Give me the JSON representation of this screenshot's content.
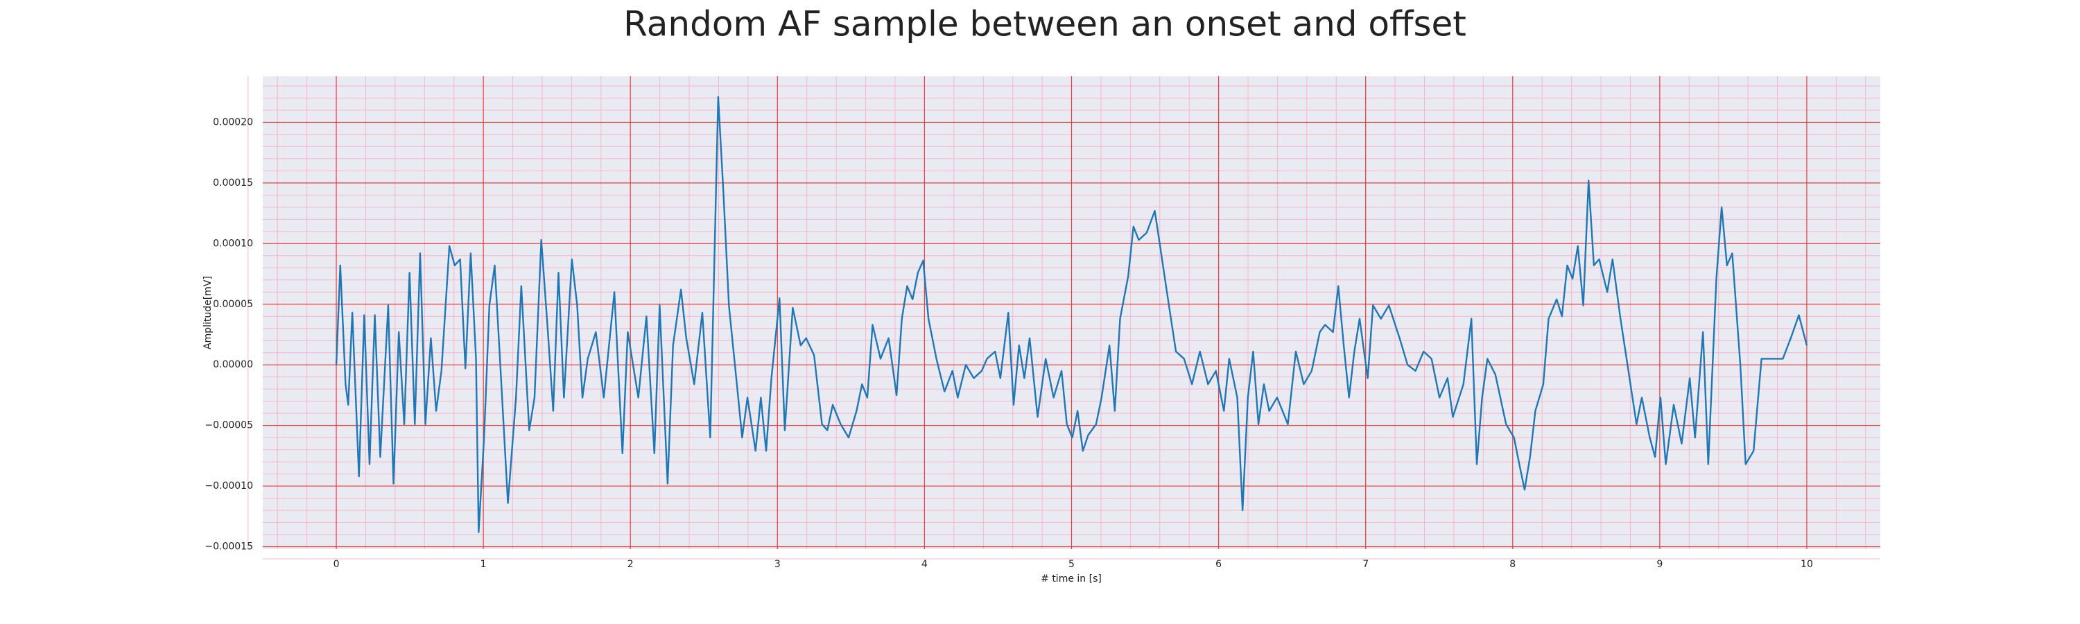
{
  "chart_data": {
    "type": "line",
    "title": "Random AF sample between an onset and offset",
    "xlabel": "# time in [s]",
    "ylabel": "Amplitude[mV]",
    "x": [
      0,
      0.027,
      0.063,
      0.081,
      0.109,
      0.154,
      0.19,
      0.226,
      0.262,
      0.299,
      0.353,
      0.389,
      0.425,
      0.462,
      0.498,
      0.534,
      0.57,
      0.606,
      0.643,
      0.679,
      0.715,
      0.769,
      0.805,
      0.842,
      0.878,
      0.914,
      0.95,
      0.968,
      1.005,
      1.041,
      1.077,
      1.113,
      1.167,
      1.222,
      1.258,
      1.312,
      1.348,
      1.394,
      1.439,
      1.475,
      1.511,
      1.548,
      1.602,
      1.638,
      1.674,
      1.71,
      1.765,
      1.819,
      1.891,
      1.946,
      1.982,
      2.054,
      2.109,
      2.163,
      2.199,
      2.253,
      2.29,
      2.344,
      2.38,
      2.434,
      2.489,
      2.543,
      2.597,
      2.633,
      2.67,
      2.724,
      2.76,
      2.796,
      2.851,
      2.887,
      2.923,
      2.959,
      3.014,
      3.05,
      3.104,
      3.158,
      3.195,
      3.249,
      3.303,
      3.339,
      3.376,
      3.43,
      3.484,
      3.538,
      3.575,
      3.611,
      3.647,
      3.701,
      3.756,
      3.81,
      3.846,
      3.882,
      3.919,
      3.955,
      3.991,
      4.027,
      4.081,
      4.136,
      4.19,
      4.226,
      4.281,
      4.335,
      4.389,
      4.425,
      4.48,
      4.516,
      4.57,
      4.606,
      4.643,
      4.679,
      4.715,
      4.769,
      4.824,
      4.878,
      4.932,
      4.968,
      5.005,
      5.041,
      5.077,
      5.113,
      5.167,
      5.204,
      5.258,
      5.294,
      5.33,
      5.385,
      5.421,
      5.457,
      5.511,
      5.566,
      5.602,
      5.656,
      5.71,
      5.765,
      5.819,
      5.873,
      5.928,
      5.982,
      6.036,
      6.072,
      6.127,
      6.163,
      6.199,
      6.235,
      6.271,
      6.308,
      6.344,
      6.398,
      6.471,
      6.525,
      6.579,
      6.633,
      6.688,
      6.724,
      6.778,
      6.814,
      6.851,
      6.887,
      6.923,
      6.959,
      7.014,
      7.05,
      7.104,
      7.158,
      7.231,
      7.285,
      7.339,
      7.394,
      7.448,
      7.502,
      7.557,
      7.593,
      7.665,
      7.719,
      7.756,
      7.792,
      7.828,
      7.882,
      7.955,
      8.009,
      8.045,
      8.081,
      8.118,
      8.154,
      8.208,
      8.244,
      8.299,
      8.335,
      8.371,
      8.407,
      8.443,
      8.48,
      8.516,
      8.552,
      8.588,
      8.643,
      8.679,
      8.733,
      8.787,
      8.842,
      8.878,
      8.932,
      8.968,
      9.005,
      9.041,
      9.095,
      9.149,
      9.204,
      9.24,
      9.294,
      9.33,
      9.385,
      9.421,
      9.457,
      9.493,
      9.548,
      9.584,
      9.638,
      9.692,
      9.765,
      9.837,
      9.891,
      9.946,
      10
    ],
    "values": [
      0,
      8.2e-05,
      -1.6e-05,
      -3.3e-05,
      4.3e-05,
      -9.2e-05,
      4.1e-05,
      -8.2e-05,
      4.1e-05,
      -7.6e-05,
      4.9e-05,
      -9.8e-05,
      2.7e-05,
      -4.9e-05,
      7.6e-05,
      -4.9e-05,
      9.2e-05,
      -4.9e-05,
      2.2e-05,
      -3.8e-05,
      -5e-06,
      9.8e-05,
      8.2e-05,
      8.7e-05,
      -3e-06,
      9.2e-05,
      5e-06,
      -0.000138,
      -6e-05,
      4.9e-05,
      8.2e-05,
      5e-06,
      -0.000114,
      -2.7e-05,
      6.5e-05,
      -5.4e-05,
      -2.7e-05,
      0.000103,
      2.7e-05,
      -3.8e-05,
      7.6e-05,
      -2.7e-05,
      8.7e-05,
      4.9e-05,
      -2.7e-05,
      5e-06,
      2.7e-05,
      -2.7e-05,
      6e-05,
      -7.3e-05,
      2.7e-05,
      -2.7e-05,
      4e-05,
      -7.3e-05,
      4.9e-05,
      -9.8e-05,
      1.6e-05,
      6.2e-05,
      2.2e-05,
      -1.6e-05,
      4.3e-05,
      -6e-05,
      0.000221,
      0.000141,
      4.9e-05,
      -1.6e-05,
      -6e-05,
      -2.7e-05,
      -7.1e-05,
      -2.7e-05,
      -7.1e-05,
      -1.1e-05,
      5.5e-05,
      -5.4e-05,
      4.7e-05,
      1.6e-05,
      2.2e-05,
      8e-06,
      -4.9e-05,
      -5.4e-05,
      -3.3e-05,
      -4.9e-05,
      -6e-05,
      -3.8e-05,
      -1.6e-05,
      -2.7e-05,
      3.3e-05,
      5e-06,
      2.2e-05,
      -2.5e-05,
      3.8e-05,
      6.5e-05,
      5.4e-05,
      7.6e-05,
      8.6e-05,
      3.8e-05,
      5e-06,
      -2.2e-05,
      -5e-06,
      -2.7e-05,
      0,
      -1.1e-05,
      -5e-06,
      5e-06,
      1.1e-05,
      -1.1e-05,
      4.3e-05,
      -3.3e-05,
      1.6e-05,
      -1.1e-05,
      2.2e-05,
      -4.3e-05,
      5e-06,
      -2.7e-05,
      -5e-06,
      -4.9e-05,
      -6e-05,
      -3.8e-05,
      -7.1e-05,
      -5.8e-05,
      -4.9e-05,
      -2.7e-05,
      1.6e-05,
      -3.8e-05,
      3.8e-05,
      7.3e-05,
      0.000114,
      0.000103,
      0.000109,
      0.000127,
      9.8e-05,
      5.4e-05,
      1.1e-05,
      5e-06,
      -1.6e-05,
      1.1e-05,
      -1.6e-05,
      -5e-06,
      -3.8e-05,
      5e-06,
      -2.7e-05,
      -0.00012,
      -2.7e-05,
      1.1e-05,
      -4.9e-05,
      -1.6e-05,
      -3.8e-05,
      -2.7e-05,
      -4.9e-05,
      1.1e-05,
      -1.6e-05,
      -5e-06,
      2.7e-05,
      3.3e-05,
      2.7e-05,
      6.5e-05,
      1.6e-05,
      -2.7e-05,
      1.1e-05,
      3.8e-05,
      -1.1e-05,
      4.9e-05,
      3.8e-05,
      4.9e-05,
      2.2e-05,
      0,
      -5e-06,
      1.1e-05,
      5e-06,
      -2.7e-05,
      -1.1e-05,
      -4.3e-05,
      -1.6e-05,
      3.8e-05,
      -8.2e-05,
      -2.7e-05,
      5e-06,
      -8e-06,
      -4.9e-05,
      -6e-05,
      -8.2e-05,
      -0.000103,
      -7.6e-05,
      -3.8e-05,
      -1.6e-05,
      3.8e-05,
      5.4e-05,
      4e-05,
      8.2e-05,
      7.1e-05,
      9.8e-05,
      4.9e-05,
      0.000152,
      8.2e-05,
      8.7e-05,
      6e-05,
      8.7e-05,
      3.8e-05,
      -5e-06,
      -4.9e-05,
      -2.7e-05,
      -6e-05,
      -7.6e-05,
      -2.7e-05,
      -8.2e-05,
      -3.3e-05,
      -6.5e-05,
      -1.1e-05,
      -6e-05,
      2.7e-05,
      -8.2e-05,
      7.1e-05,
      0.00013,
      8.2e-05,
      9.2e-05,
      0,
      -8.2e-05,
      -7.1e-05,
      5e-06,
      5e-06,
      5e-06,
      2.2e-05,
      4.1e-05,
      1.6e-05
    ],
    "color": "#1f77b4",
    "xlim": [
      -0.5,
      10.5
    ],
    "xticks": [
      0,
      1,
      2,
      3,
      4,
      5,
      6,
      7,
      8,
      9,
      10
    ],
    "ylim": [
      -0.000152,
      0.000238
    ],
    "yticks": [
      {
        "value": -0.00015,
        "label": "−0.00015"
      },
      {
        "value": -0.0001,
        "label": "−0.00010"
      },
      {
        "value": -5e-05,
        "label": "−0.00005"
      },
      {
        "value": 0,
        "label": "0.00000"
      },
      {
        "value": 5e-05,
        "label": "0.00005"
      },
      {
        "value": 0.0001,
        "label": "0.00010"
      },
      {
        "value": 0.00015,
        "label": "0.00015"
      },
      {
        "value": 0.0002,
        "label": "0.00020"
      }
    ],
    "grid": true,
    "minor_grid_divisions": 5
  }
}
